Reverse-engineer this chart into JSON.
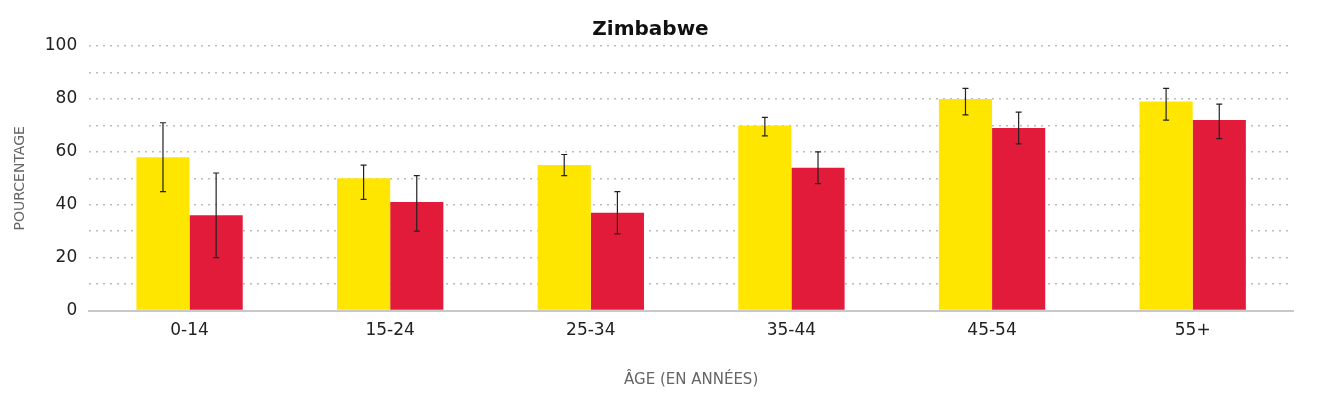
{
  "chart_data": {
    "type": "bar",
    "title": "Zimbabwe",
    "xlabel": "ÂGE (EN ANNÉES)",
    "ylabel": "POURCENTAGE",
    "categories": [
      "0-14",
      "15-24",
      "25-34",
      "35-44",
      "45-54",
      "55+"
    ],
    "series": [
      {
        "color": "#ffe600",
        "values": [
          58,
          50,
          55,
          70,
          80,
          79
        ],
        "errors": [
          [
            45,
            71
          ],
          [
            42,
            55
          ],
          [
            51,
            59
          ],
          [
            66,
            73
          ],
          [
            74,
            84
          ],
          [
            72,
            84
          ]
        ]
      },
      {
        "color": "#e31b3b",
        "values": [
          36,
          41,
          37,
          54,
          69,
          72
        ],
        "errors": [
          [
            20,
            52
          ],
          [
            30,
            51
          ],
          [
            29,
            45
          ],
          [
            48,
            60
          ],
          [
            63,
            75
          ],
          [
            65,
            78
          ]
        ]
      }
    ],
    "ylim": [
      0,
      100
    ],
    "yticks": [
      0,
      {
        "value": 10,
        "label": null
      },
      20,
      {
        "value": 30,
        "label": null
      },
      40,
      {
        "value": 50,
        "label": null
      },
      60,
      {
        "value": 70,
        "label": null
      },
      80,
      {
        "value": 90,
        "label": null
      },
      100
    ],
    "grid": "y",
    "legend": false
  }
}
